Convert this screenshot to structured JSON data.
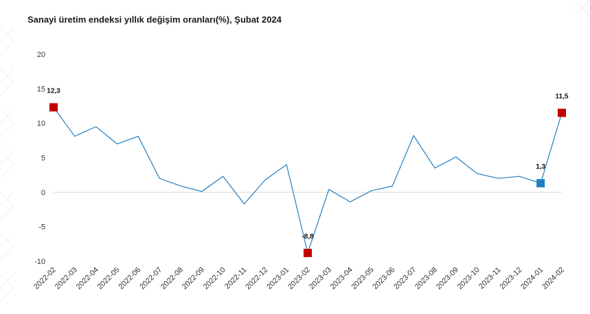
{
  "title": "Sanayi üretim endeksi yıllık değişim oranları(%), Şubat 2024",
  "chart_data": {
    "type": "line",
    "title": "Sanayi üretim endeksi yıllık değişim oranları(%), Şubat 2024",
    "xlabel": "",
    "ylabel": "",
    "ylim": [
      -10,
      20
    ],
    "yticks": [
      20,
      15,
      10,
      5,
      0,
      -5,
      -10
    ],
    "grid": false,
    "categories": [
      "2022-02",
      "2022-03",
      "2022-04",
      "2022-05",
      "2022-06",
      "2022-07",
      "2022-08",
      "2022-09",
      "2022-10",
      "2022-11",
      "2022-12",
      "2023-01",
      "2023-02",
      "2023-03",
      "2023-04",
      "2023-05",
      "2023-06",
      "2023-07",
      "2023-08",
      "2023-09",
      "2023-10",
      "2023-11",
      "2023-12",
      "2024-01",
      "2024-02"
    ],
    "series": [
      {
        "values": [
          12.3,
          8.1,
          9.5,
          7.0,
          8.1,
          2.0,
          0.9,
          0.1,
          2.3,
          -1.7,
          1.8,
          4.0,
          -8.8,
          0.4,
          -1.4,
          0.2,
          0.9,
          8.2,
          3.5,
          5.1,
          2.7,
          2.0,
          2.3,
          1.3,
          11.5
        ],
        "color": "#1f7fc0"
      }
    ],
    "highlights": [
      {
        "category": "2022-02",
        "value": 12.3,
        "label": "12,3",
        "color": "#c00000"
      },
      {
        "category": "2023-02",
        "value": -8.8,
        "label": "-8,8",
        "color": "#c00000"
      },
      {
        "category": "2024-01",
        "value": 1.3,
        "label": "1,3",
        "color": "#1f7fc0"
      },
      {
        "category": "2024-02",
        "value": 11.5,
        "label": "11,5",
        "color": "#c00000"
      }
    ]
  }
}
